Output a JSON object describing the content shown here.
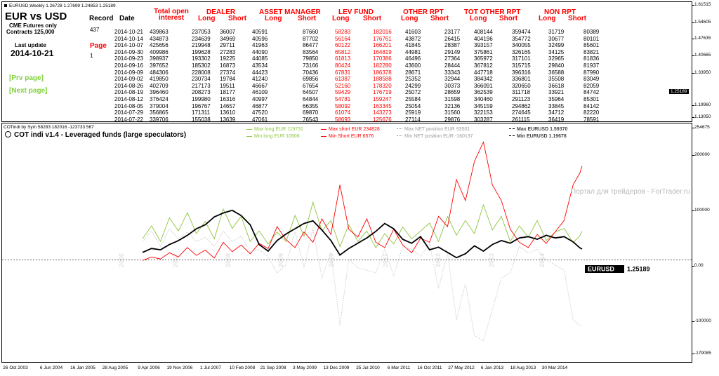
{
  "window": {
    "chart_title": "EURUSD,Weekly  1.26728 1.27699 1.24853 1.25189"
  },
  "info": {
    "pair_title": "EUR vs USD",
    "futures_line1": "CME Futures only",
    "futures_line2": "Contracts  125,000",
    "last_update_label": "Last update",
    "last_update_value": "2014-10-21",
    "record_label": "Record",
    "record_value": "437",
    "page_label": "Page",
    "page_value": "1",
    "prev_page": "[Prv page]",
    "next_page": "[Next page]"
  },
  "table": {
    "group_headers": [
      "Total open interest",
      "DEALER",
      "ASSET MANAGER",
      "LEV FUND",
      "OTHER RPT",
      "TOT OTHER RPT",
      "NON RPT"
    ],
    "date_header": "Date",
    "long_label": "Long",
    "short_label": "Short",
    "rows": [
      [
        "2014-10-21",
        "439863",
        "237053",
        "36007",
        "40591",
        "87660",
        "58283",
        "182016",
        "41603",
        "23177",
        "408144",
        "359474",
        "31719",
        "80389"
      ],
      [
        "2014-10-14",
        "434873",
        "234639",
        "34969",
        "40596",
        "87702",
        "56164",
        "176761",
        "43872",
        "26415",
        "404196",
        "354772",
        "30677",
        "80101"
      ],
      [
        "2014-10-07",
        "425656",
        "219948",
        "29711",
        "41963",
        "86477",
        "60122",
        "166201",
        "41845",
        "28387",
        "393157",
        "340055",
        "32499",
        "85601"
      ],
      [
        "2014-09-30",
        "409986",
        "199628",
        "27283",
        "44090",
        "83564",
        "65812",
        "164819",
        "44981",
        "29149",
        "375861",
        "326165",
        "34125",
        "83821"
      ],
      [
        "2014-09-23",
        "398937",
        "193302",
        "19225",
        "44085",
        "79850",
        "61813",
        "170386",
        "46496",
        "27364",
        "365972",
        "317101",
        "32965",
        "81836"
      ],
      [
        "2014-09-16",
        "397652",
        "185302",
        "16873",
        "43534",
        "73166",
        "80424",
        "182280",
        "43600",
        "28444",
        "367812",
        "315715",
        "29840",
        "81937"
      ],
      [
        "2014-09-09",
        "484306",
        "228008",
        "27374",
        "44423",
        "70436",
        "67831",
        "186378",
        "28671",
        "33343",
        "447718",
        "396316",
        "36588",
        "87990"
      ],
      [
        "2014-09-02",
        "419850",
        "230734",
        "19784",
        "41240",
        "69856",
        "61387",
        "188588",
        "25352",
        "32944",
        "384342",
        "336801",
        "35508",
        "83049"
      ],
      [
        "2014-08-26",
        "402709",
        "217173",
        "19511",
        "46667",
        "67654",
        "52160",
        "178320",
        "24299",
        "30373",
        "366091",
        "320650",
        "36618",
        "82059"
      ],
      [
        "2014-08-19",
        "396460",
        "208273",
        "18177",
        "46109",
        "64507",
        "59429",
        "176719",
        "25072",
        "28659",
        "362539",
        "311718",
        "33921",
        "84742"
      ],
      [
        "2014-08-12",
        "376424",
        "199980",
        "16316",
        "40997",
        "64844",
        "54781",
        "159247",
        "25584",
        "31598",
        "340460",
        "291123",
        "35964",
        "85301"
      ],
      [
        "2014-08-05",
        "379004",
        "196767",
        "14657",
        "46877",
        "66355",
        "58092",
        "163345",
        "25054",
        "32136",
        "345159",
        "294862",
        "33845",
        "84142"
      ],
      [
        "2014-07-29",
        "356865",
        "171311",
        "13610",
        "47520",
        "69870",
        "61074",
        "143273",
        "25919",
        "31560",
        "322153",
        "274645",
        "34712",
        "82220"
      ],
      [
        "2014-07-22",
        "339706",
        "155038",
        "13639",
        "47061",
        "76543",
        "58693",
        "125676",
        "27114",
        "29876",
        "303287",
        "261115",
        "36419",
        "78591"
      ]
    ]
  },
  "top_axis": [
    "1.61515",
    "1.54605",
    "1.47635",
    "1.40665",
    "1.33950",
    "1.25189",
    "1.19960",
    "1.13050"
  ],
  "indicator": {
    "sub_header": "COTindi by Sym 58283 182016 -123733 567",
    "title": "COT indi v1.4 - Leveraged funds (large speculators)",
    "max_long": "Max long EUR  119731",
    "min_long": "Min long EUR  10606",
    "max_short": "Max short EUR  234828",
    "min_short": "Min Short EUR  6576",
    "max_net": "Max NET position EUR  93501",
    "min_net": "Min NET position EUR  -160137",
    "max_eurusd": "Max EURUSD  1.59370",
    "min_eurusd": "Min EURUSD  1.19678",
    "watermark": "Портал для трейдеров - ForTrader.ru",
    "price_label": "EURUSD",
    "price_value": "1.25189",
    "colors": {
      "long": "#8cc63f",
      "short": "#ff0000",
      "net": "#c8c8c8",
      "price": "#000000"
    }
  },
  "bottom_axis": [
    "254675",
    "200000",
    "100000",
    "0.00",
    "-100000",
    "-179085"
  ],
  "x_axis": [
    "26 Oct 2003",
    "6 Jun 2004",
    "16 Jan 2005",
    "28 Aug 2005",
    "9 Apr 2006",
    "19 Nov 2006",
    "1 Jul 2007",
    "10 Feb 2008",
    "21 Sep 2008",
    "3 May 2009",
    "13 Dec 2009",
    "25 Jul 2010",
    "6 Mar 2011",
    "16 Oct 2011",
    "27 May 2012",
    "6 Jan 2013",
    "18 Aug 2013",
    "30 Mar 2014"
  ],
  "year_marks": [
    "2006",
    "2007",
    "2008",
    "2009",
    "2010",
    "2011",
    "2012",
    "2013",
    "2014"
  ],
  "chart_data": {
    "type": "line",
    "x_range": [
      "2006-04",
      "2014-10"
    ],
    "series": [
      {
        "name": "Max long EUR",
        "values": [
          45000,
          70000,
          40000,
          85000,
          60000,
          95000,
          55000,
          78000,
          45000,
          102000,
          65000,
          88000,
          40000,
          60000,
          35000,
          58000,
          40000,
          90000,
          50000,
          115000,
          60000,
          80000,
          30000,
          72000,
          40000,
          60000,
          28000,
          55000,
          35000,
          68000,
          45000,
          60000,
          75000,
          40000,
          88000,
          52000,
          80000,
          55000,
          110000,
          62000,
          88000,
          40000,
          70000,
          48000,
          80000,
          42000,
          58000,
          65000,
          38000,
          55000
        ]
      },
      {
        "name": "Max short EUR",
        "values": [
          5000,
          12000,
          8000,
          20000,
          12000,
          30000,
          15000,
          25000,
          10000,
          40000,
          22000,
          35000,
          18000,
          38000,
          28000,
          70000,
          45000,
          30000,
          60000,
          40000,
          85000,
          55000,
          150000,
          65000,
          50000,
          85000,
          40000,
          30000,
          65000,
          35000,
          20000,
          48000,
          40000,
          90000,
          70000,
          160000,
          120000,
          195000,
          232000,
          150000,
          120000,
          65000,
          40000,
          30000,
          55000,
          38000,
          60000,
          82000,
          150000,
          180000
        ]
      },
      {
        "name": "Max NET position EUR",
        "values": [
          40000,
          60000,
          30000,
          65000,
          45000,
          58000,
          40000,
          48000,
          30000,
          60000,
          40000,
          50000,
          20000,
          25000,
          10000,
          -20000,
          -5000,
          60000,
          -10000,
          65000,
          -30000,
          20000,
          -120000,
          5000,
          -10000,
          -15000,
          -20000,
          25000,
          -25000,
          30000,
          25000,
          12000,
          35000,
          -50000,
          18000,
          -110000,
          -40000,
          -140000,
          -150000,
          -90000,
          -30000,
          -20000,
          30000,
          18000,
          25000,
          5000,
          -5000,
          -15000,
          -110000,
          -125000
        ]
      },
      {
        "name": "EURUSD",
        "values": [
          1.26,
          1.29,
          1.28,
          1.32,
          1.35,
          1.39,
          1.44,
          1.47,
          1.53,
          1.56,
          1.58,
          1.54,
          1.47,
          1.32,
          1.27,
          1.35,
          1.4,
          1.44,
          1.48,
          1.5,
          1.43,
          1.35,
          1.24,
          1.29,
          1.33,
          1.37,
          1.42,
          1.48,
          1.44,
          1.36,
          1.33,
          1.38,
          1.28,
          1.3,
          1.26,
          1.22,
          1.25,
          1.31,
          1.27,
          1.32,
          1.35,
          1.33,
          1.37,
          1.38,
          1.36,
          1.39,
          1.37,
          1.38,
          1.34,
          1.28
        ]
      }
    ],
    "ylim": [
      -179085,
      254675
    ]
  }
}
